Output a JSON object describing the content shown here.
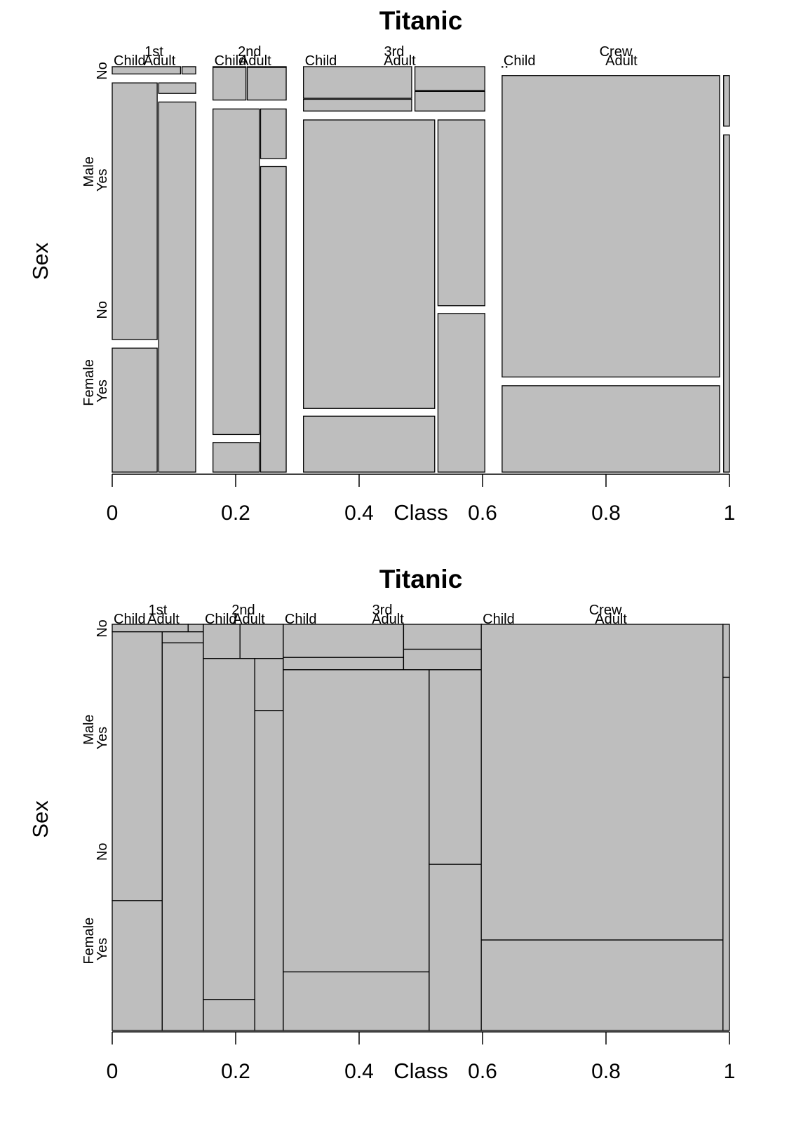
{
  "chart_data": [
    {
      "type": "mosaic",
      "title": "Titanic",
      "xlabel": "Class",
      "ylabel": "Sex",
      "xlim": [
        0,
        1
      ],
      "xticks": [
        "0",
        "0.2",
        "0.4",
        "0.6",
        "0.8",
        "1"
      ],
      "spacing": "expanded",
      "tile_color": "#bebebe",
      "classes": [
        "1st",
        "2nd",
        "3rd",
        "Crew"
      ],
      "ages": [
        "Child",
        "Adult"
      ],
      "sexes": [
        "Male",
        "Female"
      ],
      "survived": [
        "No",
        "Yes"
      ],
      "labels": {
        "class": [
          "1st",
          "2nd",
          "3rd",
          "Crew"
        ],
        "age": [
          "Child",
          "Adult",
          "Child",
          "Adult",
          "Child",
          "Adult",
          "Child",
          "Adult"
        ],
        "sex": [
          "Male",
          "Female"
        ],
        "survived": [
          "No",
          "Yes",
          "No",
          "Yes"
        ]
      },
      "counts": {
        "1st": {
          "Child": {
            "Male": [
              0,
              5
            ],
            "Female": [
              0,
              1
            ]
          },
          "Adult": {
            "Male": [
              118,
              57
            ],
            "Female": [
              4,
              140
            ]
          }
        },
        "2nd": {
          "Child": {
            "Male": [
              0,
              11
            ],
            "Female": [
              0,
              13
            ]
          },
          "Adult": {
            "Male": [
              154,
              14
            ],
            "Female": [
              13,
              80
            ]
          }
        },
        "3rd": {
          "Child": {
            "Male": [
              35,
              13
            ],
            "Female": [
              17,
              14
            ]
          },
          "Adult": {
            "Male": [
              387,
              75
            ],
            "Female": [
              89,
              76
            ]
          }
        },
        "Crew": {
          "Child": {
            "Male": [
              0,
              0
            ],
            "Female": [
              0,
              0
            ]
          },
          "Adult": {
            "Male": [
              670,
              192
            ],
            "Female": [
              3,
              20
            ]
          }
        }
      }
    },
    {
      "type": "mosaic",
      "title": "Titanic",
      "xlabel": "Class",
      "ylabel": "Sex",
      "xlim": [
        0,
        1
      ],
      "xticks": [
        "0",
        "0.2",
        "0.4",
        "0.6",
        "0.8",
        "1"
      ],
      "spacing": "none",
      "tile_color": "#bebebe",
      "classes": [
        "1st",
        "2nd",
        "3rd",
        "Crew"
      ],
      "ages": [
        "Child",
        "Adult"
      ],
      "sexes": [
        "Male",
        "Female"
      ],
      "survived": [
        "No",
        "Yes"
      ],
      "labels": {
        "class": [
          "1st",
          "2nd",
          "3rd",
          "Crew"
        ],
        "age": [
          "Child",
          "Adult",
          "Child",
          "Adult",
          "Child",
          "Adult",
          "Child",
          "Adult"
        ],
        "sex": [
          "Male",
          "Female"
        ],
        "survived": [
          "No",
          "Yes",
          "No",
          "Yes"
        ]
      },
      "counts": {
        "1st": {
          "Child": {
            "Male": [
              0,
              5
            ],
            "Female": [
              0,
              1
            ]
          },
          "Adult": {
            "Male": [
              118,
              57
            ],
            "Female": [
              4,
              140
            ]
          }
        },
        "2nd": {
          "Child": {
            "Male": [
              0,
              11
            ],
            "Female": [
              0,
              13
            ]
          },
          "Adult": {
            "Male": [
              154,
              14
            ],
            "Female": [
              13,
              80
            ]
          }
        },
        "3rd": {
          "Child": {
            "Male": [
              35,
              13
            ],
            "Female": [
              17,
              14
            ]
          },
          "Adult": {
            "Male": [
              387,
              75
            ],
            "Female": [
              89,
              76
            ]
          }
        },
        "Crew": {
          "Child": {
            "Male": [
              0,
              0
            ],
            "Female": [
              0,
              0
            ]
          },
          "Adult": {
            "Male": [
              670,
              192
            ],
            "Female": [
              3,
              20
            ]
          }
        }
      }
    }
  ]
}
